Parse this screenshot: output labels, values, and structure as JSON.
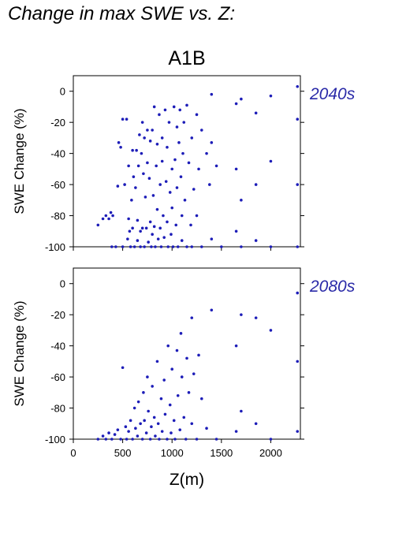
{
  "figure_title": "Change in max SWE vs. Z:",
  "scenario_title": "A1B",
  "colors": {
    "points": "#1d1db8",
    "label": "#2a2aa8",
    "axis": "#000000"
  },
  "chart_data": [
    {
      "type": "scatter",
      "period_label": "2040s",
      "ylabel": "SWE Change (%)",
      "xlim": [
        0,
        2300
      ],
      "ylim": [
        -100,
        10
      ],
      "yticks": [
        0,
        -20,
        -40,
        -60,
        -80,
        -100
      ],
      "x": [
        250,
        300,
        330,
        360,
        380,
        390,
        400,
        430,
        450,
        460,
        480,
        500,
        500,
        520,
        540,
        550,
        560,
        560,
        570,
        580,
        590,
        600,
        600,
        610,
        620,
        630,
        640,
        650,
        650,
        660,
        670,
        680,
        680,
        690,
        700,
        700,
        710,
        720,
        720,
        730,
        740,
        750,
        750,
        760,
        770,
        780,
        780,
        790,
        800,
        800,
        810,
        820,
        820,
        830,
        840,
        850,
        850,
        860,
        870,
        880,
        880,
        890,
        900,
        900,
        910,
        920,
        930,
        940,
        950,
        950,
        960,
        970,
        980,
        990,
        1000,
        1000,
        1010,
        1020,
        1030,
        1040,
        1050,
        1050,
        1060,
        1070,
        1080,
        1090,
        1100,
        1100,
        1110,
        1120,
        1130,
        1150,
        1150,
        1170,
        1190,
        1200,
        1200,
        1220,
        1250,
        1250,
        1270,
        1300,
        1300,
        1350,
        1380,
        1400,
        1400,
        1400,
        1450,
        1500,
        1650,
        1650,
        1650,
        1700,
        1700,
        1700,
        1850,
        1850,
        1850,
        2000,
        2000,
        2000,
        2270,
        2270,
        2270,
        2270
      ],
      "y": [
        -86,
        -82,
        -80,
        -82,
        -78,
        -100,
        -80,
        -100,
        -61,
        -33,
        -36,
        -18,
        -100,
        -60,
        -18,
        -95,
        -48,
        -82,
        -90,
        -100,
        -70,
        -38,
        -88,
        -55,
        -100,
        -62,
        -38,
        -83,
        -96,
        -48,
        -28,
        -90,
        -100,
        -40,
        -20,
        -88,
        -53,
        -100,
        -30,
        -68,
        -88,
        -46,
        -25,
        -97,
        -56,
        -32,
        -84,
        -100,
        -25,
        -92,
        -67,
        -10,
        -87,
        -100,
        -48,
        -34,
        -76,
        -95,
        -15,
        -60,
        -88,
        -100,
        -30,
        -45,
        -80,
        -94,
        -12,
        -58,
        -36,
        -84,
        -100,
        -20,
        -65,
        -92,
        -50,
        -75,
        -100,
        -10,
        -44,
        -86,
        -23,
        -62,
        -100,
        -33,
        -12,
        -55,
        -80,
        -96,
        -40,
        -20,
        -70,
        -100,
        -9,
        -46,
        -86,
        -30,
        -100,
        -63,
        -15,
        -80,
        -50,
        -100,
        -25,
        -40,
        -60,
        -2,
        -33,
        -95,
        -48,
        -100,
        -8,
        -50,
        -90,
        -5,
        -70,
        -100,
        -14,
        -60,
        -96,
        -3,
        -45,
        -100,
        3,
        -18,
        -60,
        -100
      ]
    },
    {
      "type": "scatter",
      "period_label": "2080s",
      "ylabel": "SWE Change (%)",
      "xlabel": "Z(m)",
      "xlim": [
        0,
        2300
      ],
      "ylim": [
        -100,
        10
      ],
      "xticks": [
        0,
        500,
        1000,
        1500,
        2000
      ],
      "yticks": [
        0,
        -20,
        -40,
        -60,
        -80,
        -100
      ],
      "x": [
        250,
        300,
        330,
        360,
        390,
        420,
        450,
        480,
        500,
        530,
        540,
        560,
        580,
        600,
        620,
        630,
        650,
        660,
        680,
        700,
        710,
        720,
        740,
        750,
        760,
        780,
        790,
        800,
        820,
        830,
        850,
        860,
        870,
        890,
        900,
        920,
        930,
        950,
        960,
        980,
        990,
        1000,
        1020,
        1030,
        1050,
        1060,
        1080,
        1090,
        1100,
        1120,
        1140,
        1150,
        1170,
        1200,
        1200,
        1220,
        1250,
        1270,
        1300,
        1350,
        1400,
        1450,
        1650,
        1650,
        1700,
        1700,
        1850,
        1850,
        2000,
        2000,
        2270,
        2270,
        2270
      ],
      "y": [
        -100,
        -98,
        -100,
        -96,
        -100,
        -97,
        -94,
        -100,
        -54,
        -92,
        -100,
        -95,
        -88,
        -100,
        -80,
        -93,
        -98,
        -76,
        -90,
        -100,
        -70,
        -88,
        -96,
        -60,
        -82,
        -100,
        -92,
        -66,
        -86,
        -98,
        -50,
        -90,
        -100,
        -74,
        -95,
        -62,
        -84,
        -100,
        -40,
        -78,
        -96,
        -55,
        -88,
        -100,
        -43,
        -72,
        -94,
        -32,
        -60,
        -86,
        -100,
        -48,
        -70,
        -22,
        -90,
        -58,
        -100,
        -46,
        -74,
        -93,
        -17,
        -100,
        -40,
        -95,
        -20,
        -82,
        -22,
        -90,
        -30,
        -100,
        -6,
        -50,
        -95
      ]
    }
  ]
}
